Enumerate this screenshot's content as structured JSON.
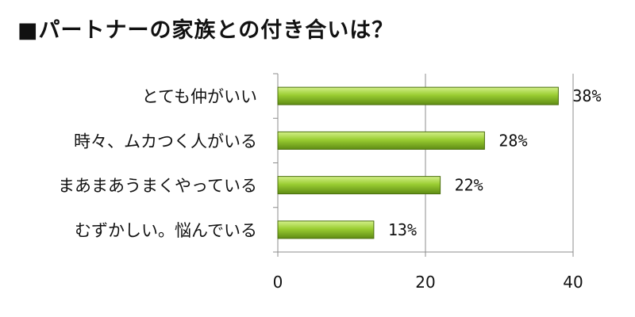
{
  "title": "■パートナーの家族との付き合いは？",
  "chart_data": {
    "type": "bar",
    "orientation": "horizontal",
    "title": "■パートナーの家族との付き合いは？",
    "categories": [
      "とても仲がいい",
      "時々、ムカつく人がいる",
      "まあまあうまくやっている",
      "むずかしい。悩んでいる"
    ],
    "values": [
      38,
      28,
      22,
      13
    ],
    "value_labels": [
      "38%",
      "28%",
      "22%",
      "13%"
    ],
    "xlim": [
      0,
      40
    ],
    "xticks": [
      "0",
      "20",
      "40"
    ],
    "grid": true,
    "legend": "none",
    "bar_color": "#9acd32",
    "bar_color_light": "#d4f08a",
    "bar_color_dark": "#5f8c14"
  }
}
